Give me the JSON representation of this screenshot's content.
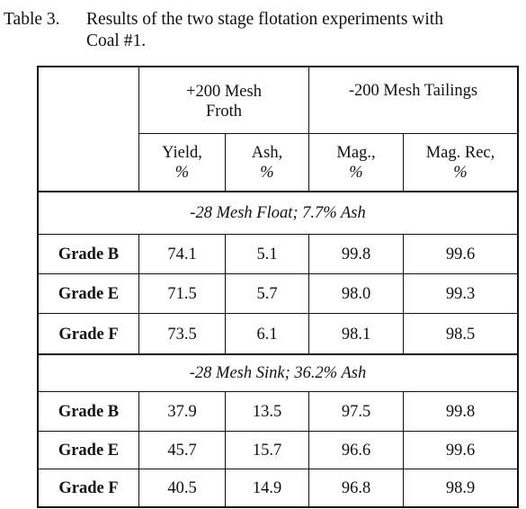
{
  "caption": {
    "label": "Table 3.",
    "line1": "Results of the two stage flotation experiments with",
    "line2": "Coal #1."
  },
  "header": {
    "froth_group": "+200 Mesh Froth",
    "tailings_group": "-200 Mesh Tailings",
    "columns": [
      {
        "label": "Yield,",
        "unit": "%"
      },
      {
        "label": "Ash,",
        "unit": "%"
      },
      {
        "label": "Mag.,",
        "unit": "%"
      },
      {
        "label": "Mag. Rec,",
        "unit": "%"
      }
    ]
  },
  "sections": [
    {
      "title": "-28 Mesh Float; 7.7% Ash",
      "rows": [
        {
          "grade": "Grade B",
          "yield": "74.1",
          "ash": "5.1",
          "mag": "99.8",
          "mag_rec": "99.6"
        },
        {
          "grade": "Grade E",
          "yield": "71.5",
          "ash": "5.7",
          "mag": "98.0",
          "mag_rec": "99.3"
        },
        {
          "grade": "Grade F",
          "yield": "73.5",
          "ash": "6.1",
          "mag": "98.1",
          "mag_rec": "98.5"
        }
      ]
    },
    {
      "title": "-28 Mesh Sink; 36.2% Ash",
      "rows": [
        {
          "grade": "Grade B",
          "yield": "37.9",
          "ash": "13.5",
          "mag": "97.5",
          "mag_rec": "99.8"
        },
        {
          "grade": "Grade E",
          "yield": "45.7",
          "ash": "15.7",
          "mag": "96.6",
          "mag_rec": "99.6"
        },
        {
          "grade": "Grade F",
          "yield": "40.5",
          "ash": "14.9",
          "mag": "96.8",
          "mag_rec": "98.9"
        }
      ]
    }
  ]
}
